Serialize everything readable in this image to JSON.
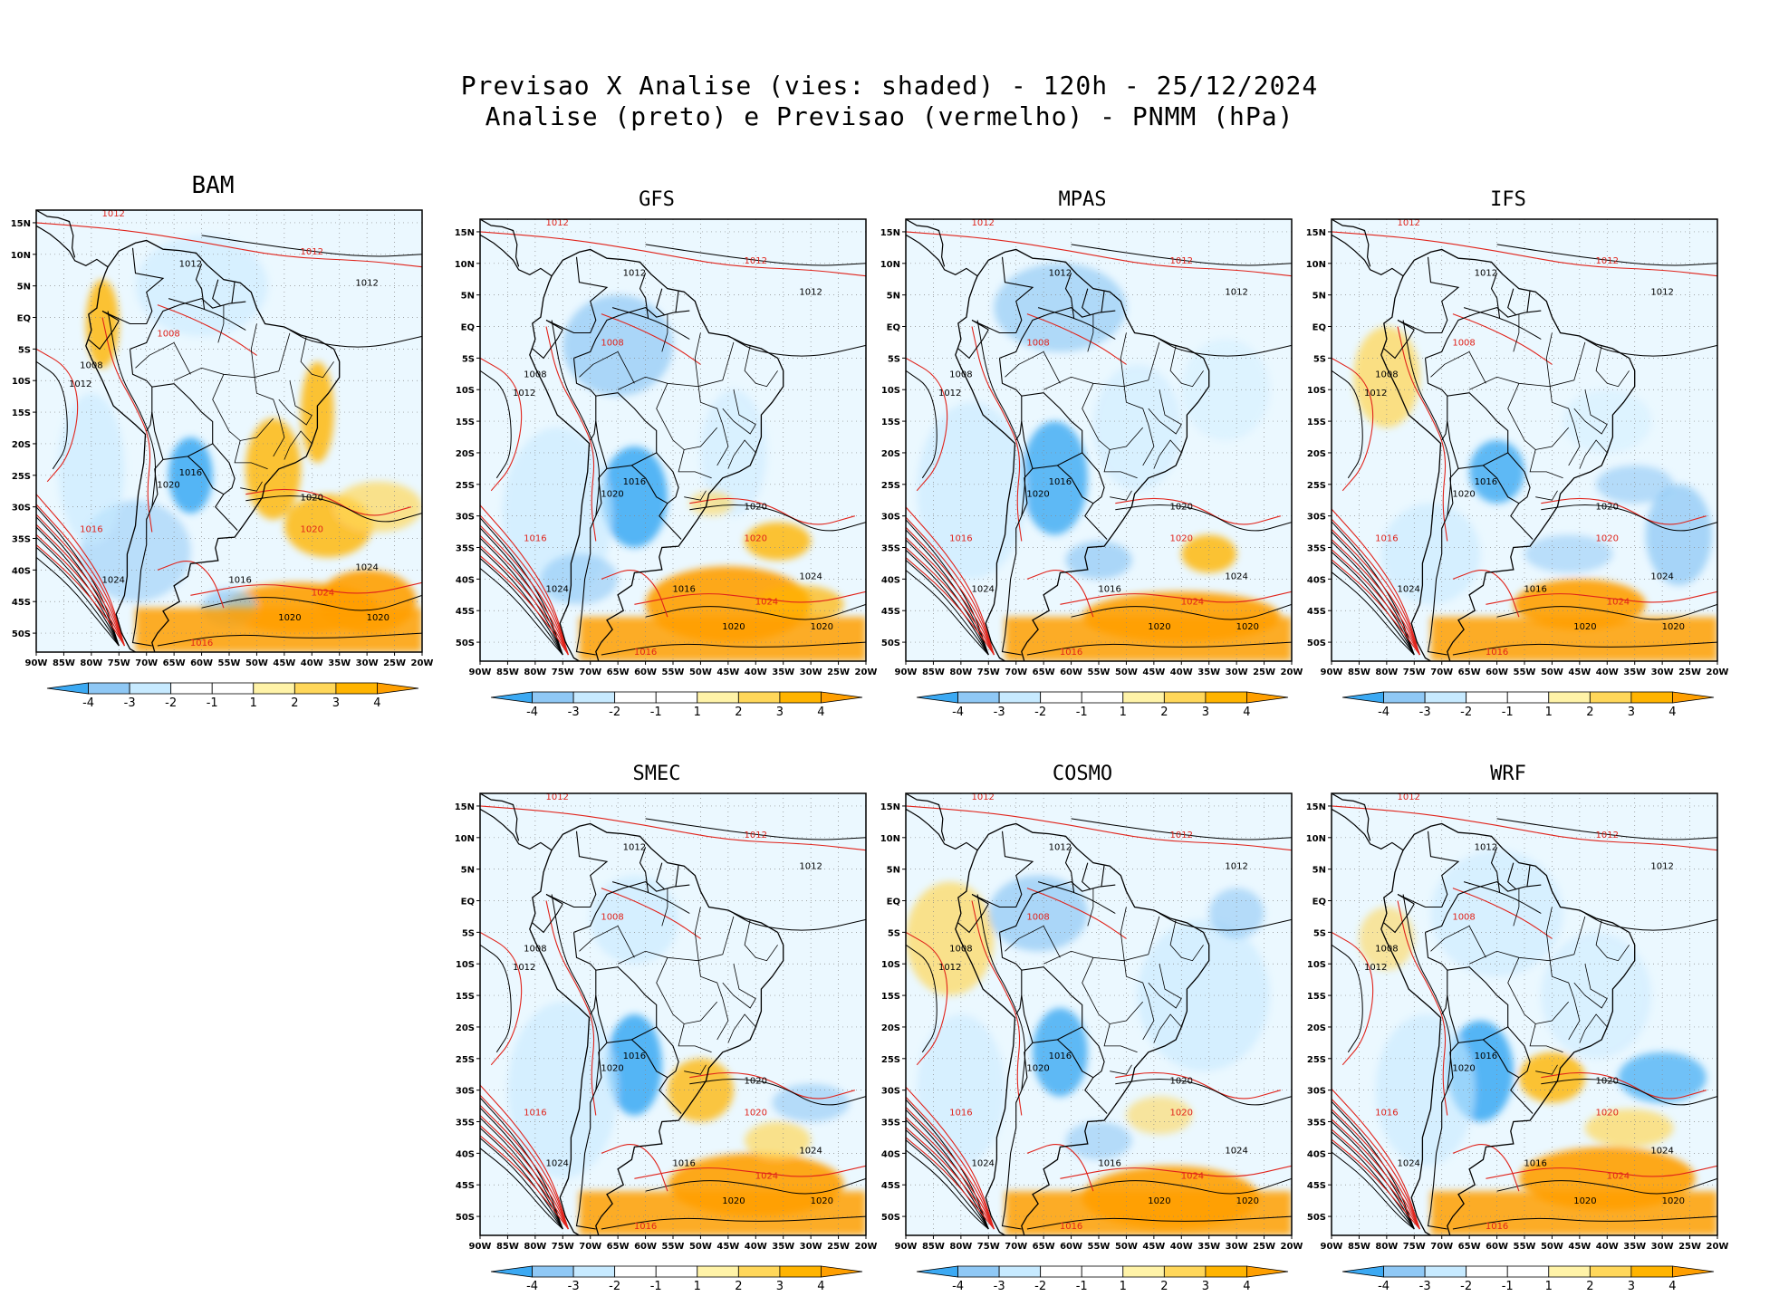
{
  "title_line1": "Previsao X Analise (vies: shaded) - 120h - 25/12/2024",
  "title_line2": "Analise (preto) e Previsao (vermelho) - PNMM (hPa)",
  "lat_labels": [
    "15N",
    "10N",
    "5N",
    "EQ",
    "5S",
    "10S",
    "15S",
    "20S",
    "25S",
    "30S",
    "35S",
    "40S",
    "45S",
    "50S"
  ],
  "lon_labels": [
    "90W",
    "85W",
    "80W",
    "75W",
    "70W",
    "65W",
    "60W",
    "55W",
    "50W",
    "45W",
    "40W",
    "35W",
    "30W",
    "25W",
    "20W"
  ],
  "colorbar_labels": [
    "-4",
    "-3",
    "-2",
    "-1",
    "1",
    "2",
    "3",
    "4"
  ],
  "colors": {
    "neg4": "#3ba9f3",
    "neg3": "#8fc8f5",
    "neg2": "#c7eaff",
    "neutral": "#ffffff",
    "pos1": "#fff3a8",
    "pos2": "#ffd75a",
    "pos3": "#ffb400",
    "pos4": "#ff9f00",
    "analysis": "#000000",
    "forecast": "#e0231b"
  },
  "panels": [
    {
      "name": "BAM",
      "isobars": [
        "1012",
        "1008",
        "1016",
        "1020",
        "1024"
      ]
    },
    {
      "name": "GFS",
      "isobars": [
        "1012",
        "1008",
        "1016",
        "1020",
        "1024"
      ]
    },
    {
      "name": "MPAS",
      "isobars": [
        "1012",
        "1008",
        "1016",
        "1020",
        "1024"
      ]
    },
    {
      "name": "IFS",
      "isobars": [
        "1012",
        "1008",
        "1016",
        "1020",
        "1024"
      ]
    },
    {
      "name": "SMEC",
      "isobars": [
        "1012",
        "1008",
        "1016",
        "1020",
        "1024"
      ]
    },
    {
      "name": "COSMO",
      "isobars": [
        "1012",
        "1008",
        "1016",
        "1020",
        "1024"
      ]
    },
    {
      "name": "WRF",
      "isobars": [
        "1012",
        "1008",
        "1016",
        "1020",
        "1024"
      ]
    }
  ]
}
